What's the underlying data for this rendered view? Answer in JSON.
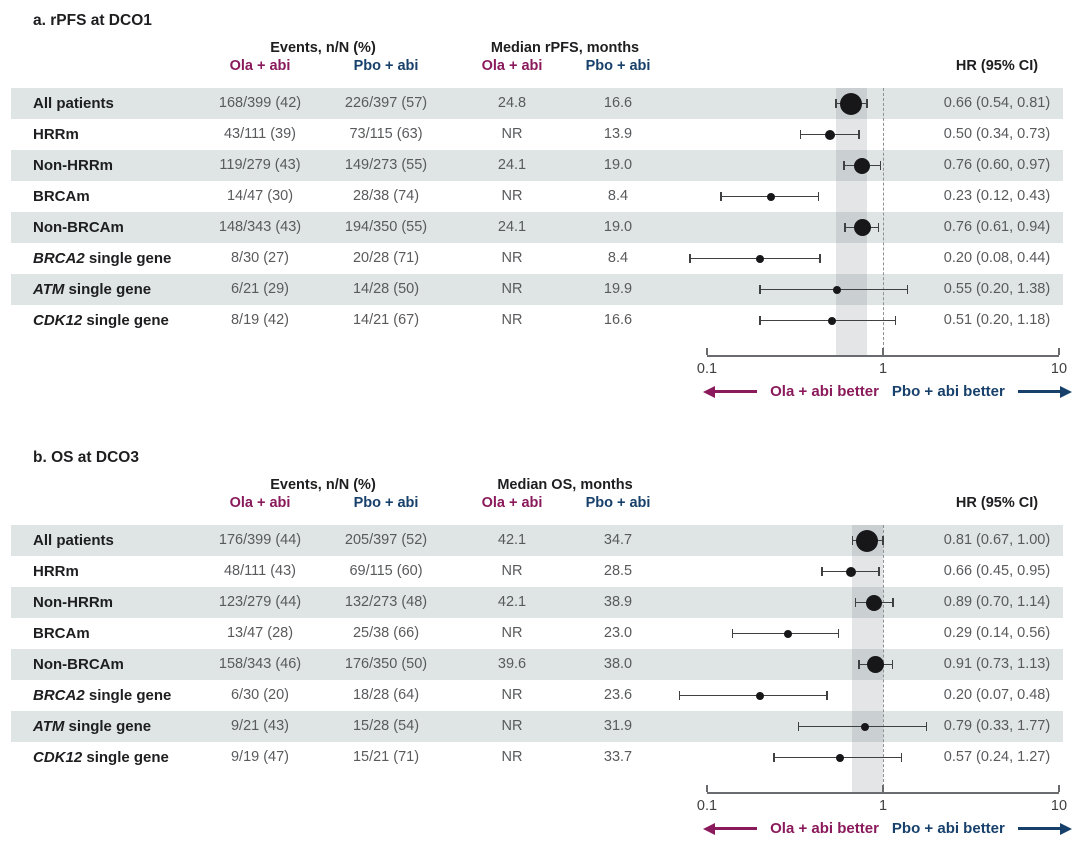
{
  "colors": {
    "ola_accent": "#8A1A5B",
    "pbo_accent": "#17406B",
    "row_shade": "#DEE5E4",
    "ci_band": "rgba(130,136,142,0.22)",
    "value_text": "#595A5C",
    "label_text": "#1E1E20",
    "marker": "#17171A",
    "ci_line": "#3F4042",
    "axis_line": "#6A6B6E",
    "dashed_line": "#8E9093"
  },
  "chart_data": [
    {
      "type": "forest",
      "id": "a",
      "title": "a. rPFS at DCO1",
      "headers": {
        "events": "Events, n/N (%)",
        "median": "Median rPFS, months",
        "ola": "Ola + abi",
        "pbo": "Pbo + abi",
        "hr": "HR (95% CI)"
      },
      "axis": {
        "scale": "log",
        "min": 0.1,
        "max": 10,
        "tick_values": [
          0.1,
          1,
          10
        ],
        "tick_labels": [
          "0.1",
          "1",
          "10"
        ],
        "reference_line": 1
      },
      "shaded_band": [
        0.54,
        0.81
      ],
      "legend": {
        "left_label": "Ola + abi better",
        "right_label": "Pbo + abi better"
      },
      "rows": [
        {
          "label_italic": "",
          "label": "All patients",
          "ola_events": "168/399 (42)",
          "pbo_events": "226/397 (57)",
          "ola_median": "24.8",
          "pbo_median": "16.6",
          "hr": 0.66,
          "ci_low": 0.54,
          "ci_high": 0.81,
          "hr_text": "0.66 (0.54, 0.81)",
          "marker_size": 22,
          "shaded": true
        },
        {
          "label_italic": "",
          "label": "HRRm",
          "ola_events": "43/111 (39)",
          "pbo_events": "73/115 (63)",
          "ola_median": "NR",
          "pbo_median": "13.9",
          "hr": 0.5,
          "ci_low": 0.34,
          "ci_high": 0.73,
          "hr_text": "0.50 (0.34, 0.73)",
          "marker_size": 10,
          "shaded": false
        },
        {
          "label_italic": "",
          "label": "Non-HRRm",
          "ola_events": "119/279 (43)",
          "pbo_events": "149/273 (55)",
          "ola_median": "24.1",
          "pbo_median": "19.0",
          "hr": 0.76,
          "ci_low": 0.6,
          "ci_high": 0.97,
          "hr_text": "0.76 (0.60, 0.97)",
          "marker_size": 16,
          "shaded": true
        },
        {
          "label_italic": "",
          "label": "BRCAm",
          "ola_events": "14/47 (30)",
          "pbo_events": "28/38 (74)",
          "ola_median": "NR",
          "pbo_median": "8.4",
          "hr": 0.23,
          "ci_low": 0.12,
          "ci_high": 0.43,
          "hr_text": "0.23 (0.12, 0.43)",
          "marker_size": 8,
          "shaded": false
        },
        {
          "label_italic": "",
          "label": "Non-BRCAm",
          "ola_events": "148/343 (43)",
          "pbo_events": "194/350 (55)",
          "ola_median": "24.1",
          "pbo_median": "19.0",
          "hr": 0.76,
          "ci_low": 0.61,
          "ci_high": 0.94,
          "hr_text": "0.76 (0.61, 0.94)",
          "marker_size": 17,
          "shaded": true
        },
        {
          "label_italic": "BRCA2",
          "label": " single gene",
          "ola_events": "8/30 (27)",
          "pbo_events": "20/28 (71)",
          "ola_median": "NR",
          "pbo_median": "8.4",
          "hr": 0.2,
          "ci_low": 0.08,
          "ci_high": 0.44,
          "hr_text": "0.20 (0.08, 0.44)",
          "marker_size": 8,
          "shaded": false
        },
        {
          "label_italic": "ATM",
          "label": " single gene",
          "ola_events": "6/21 (29)",
          "pbo_events": "14/28 (50)",
          "ola_median": "NR",
          "pbo_median": "19.9",
          "hr": 0.55,
          "ci_low": 0.2,
          "ci_high": 1.38,
          "hr_text": "0.55 (0.20, 1.38)",
          "marker_size": 8,
          "shaded": true
        },
        {
          "label_italic": "CDK12",
          "label": " single gene",
          "ola_events": "8/19 (42)",
          "pbo_events": "14/21 (67)",
          "ola_median": "NR",
          "pbo_median": "16.6",
          "hr": 0.51,
          "ci_low": 0.2,
          "ci_high": 1.18,
          "hr_text": "0.51 (0.20, 1.18)",
          "marker_size": 8,
          "shaded": false
        }
      ]
    },
    {
      "type": "forest",
      "id": "b",
      "title": "b. OS at DCO3",
      "headers": {
        "events": "Events, n/N (%)",
        "median": "Median OS, months",
        "ola": "Ola + abi",
        "pbo": "Pbo + abi",
        "hr": "HR (95% CI)"
      },
      "axis": {
        "scale": "log",
        "min": 0.1,
        "max": 10,
        "tick_values": [
          0.1,
          1,
          10
        ],
        "tick_labels": [
          "0.1",
          "1",
          "10"
        ],
        "reference_line": 1
      },
      "shaded_band": [
        0.67,
        1.0
      ],
      "legend": {
        "left_label": "Ola + abi better",
        "right_label": "Pbo + abi better"
      },
      "rows": [
        {
          "label_italic": "",
          "label": "All patients",
          "ola_events": "176/399 (44)",
          "pbo_events": "205/397 (52)",
          "ola_median": "42.1",
          "pbo_median": "34.7",
          "hr": 0.81,
          "ci_low": 0.67,
          "ci_high": 1.0,
          "hr_text": "0.81 (0.67, 1.00)",
          "marker_size": 22,
          "shaded": true
        },
        {
          "label_italic": "",
          "label": "HRRm",
          "ola_events": "48/111 (43)",
          "pbo_events": "69/115 (60)",
          "ola_median": "NR",
          "pbo_median": "28.5",
          "hr": 0.66,
          "ci_low": 0.45,
          "ci_high": 0.95,
          "hr_text": "0.66 (0.45, 0.95)",
          "marker_size": 10,
          "shaded": false
        },
        {
          "label_italic": "",
          "label": "Non-HRRm",
          "ola_events": "123/279 (44)",
          "pbo_events": "132/273 (48)",
          "ola_median": "42.1",
          "pbo_median": "38.9",
          "hr": 0.89,
          "ci_low": 0.7,
          "ci_high": 1.14,
          "hr_text": "0.89 (0.70, 1.14)",
          "marker_size": 16,
          "shaded": true
        },
        {
          "label_italic": "",
          "label": "BRCAm",
          "ola_events": "13/47 (28)",
          "pbo_events": "25/38 (66)",
          "ola_median": "NR",
          "pbo_median": "23.0",
          "hr": 0.29,
          "ci_low": 0.14,
          "ci_high": 0.56,
          "hr_text": "0.29 (0.14, 0.56)",
          "marker_size": 8,
          "shaded": false
        },
        {
          "label_italic": "",
          "label": "Non-BRCAm",
          "ola_events": "158/343 (46)",
          "pbo_events": "176/350 (50)",
          "ola_median": "39.6",
          "pbo_median": "38.0",
          "hr": 0.91,
          "ci_low": 0.73,
          "ci_high": 1.13,
          "hr_text": "0.91 (0.73, 1.13)",
          "marker_size": 17,
          "shaded": true
        },
        {
          "label_italic": "BRCA2",
          "label": " single gene",
          "ola_events": "6/30 (20)",
          "pbo_events": "18/28 (64)",
          "ola_median": "NR",
          "pbo_median": "23.6",
          "hr": 0.2,
          "ci_low": 0.07,
          "ci_high": 0.48,
          "hr_text": "0.20 (0.07, 0.48)",
          "marker_size": 8,
          "shaded": false
        },
        {
          "label_italic": "ATM",
          "label": " single gene",
          "ola_events": "9/21 (43)",
          "pbo_events": "15/28 (54)",
          "ola_median": "NR",
          "pbo_median": "31.9",
          "hr": 0.79,
          "ci_low": 0.33,
          "ci_high": 1.77,
          "hr_text": "0.79 (0.33, 1.77)",
          "marker_size": 8,
          "shaded": true
        },
        {
          "label_italic": "CDK12",
          "label": " single gene",
          "ola_events": "9/19 (47)",
          "pbo_events": "15/21 (71)",
          "ola_median": "NR",
          "pbo_median": "33.7",
          "hr": 0.57,
          "ci_low": 0.24,
          "ci_high": 1.27,
          "hr_text": "0.57 (0.24, 1.27)",
          "marker_size": 8,
          "shaded": false
        }
      ]
    }
  ]
}
